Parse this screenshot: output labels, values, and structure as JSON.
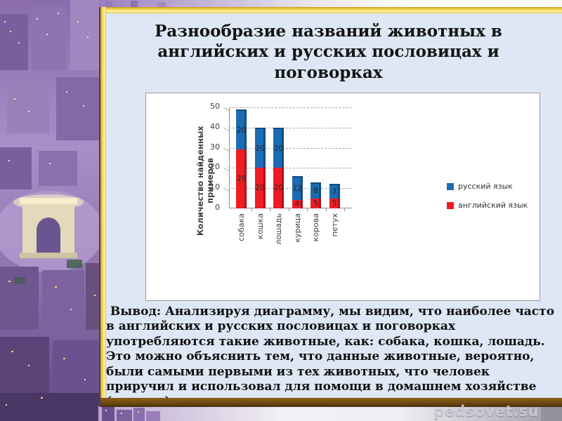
{
  "slide": {
    "title": "Разнообразие названий животных в английских и русских пословицах и поговорках",
    "conclusion": " Вывод: Анализируя диаграмму, мы видим, что наиболее часто в английских и русских пословицах и поговорках употребляются такие животные, как: собака, кошка, лошадь. Это можно объяснить тем, что данные животные, вероятно, были самыми первыми из тех животных, что человек приручил и использовал для помощи в домашнем хозяйстве (лошадь).",
    "watermark": "pedsovet.su"
  },
  "colors": {
    "panel_background": "#dee7f5",
    "frame_gold": "#f2cd3f",
    "frame_brown": "#6e4b12",
    "russian_blue": "#1b6cb3",
    "english_red": "#ee1c24"
  },
  "chart_data": {
    "type": "bar",
    "stacked": true,
    "title": "",
    "categories": [
      "собака",
      "кошка",
      "лошадь",
      "курица",
      "корова",
      "петух"
    ],
    "series": [
      {
        "name": "английский язык",
        "color": "#ee1c24",
        "values": [
          29,
          20,
          20,
          4,
          5,
          5
        ]
      },
      {
        "name": "русский язык",
        "color": "#1b6cb3",
        "values": [
          20,
          20,
          20,
          12,
          8,
          7
        ]
      }
    ],
    "xlabel": "",
    "ylabel": "Количество найденных примеров",
    "yticks": [
      0,
      10,
      20,
      30,
      40,
      50
    ],
    "ylim": [
      0,
      50
    ],
    "grid": "horizontal-dashed",
    "legend_position": "right"
  }
}
